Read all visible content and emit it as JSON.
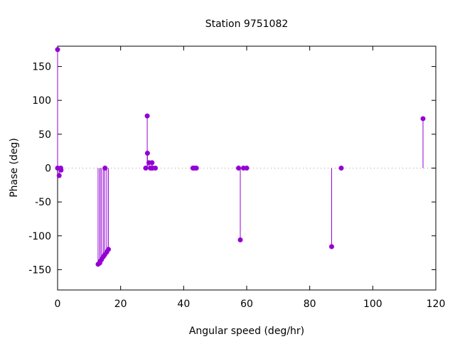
{
  "chart_data": {
    "type": "scatter",
    "style": "impulses with points",
    "title": "Station 9751082",
    "xlabel": "Angular speed (deg/hr)",
    "ylabel": "Phase (deg)",
    "xlim": [
      0,
      120
    ],
    "ylim": [
      -180,
      180
    ],
    "xticks": [
      0,
      20,
      40,
      60,
      80,
      100,
      120
    ],
    "yticks": [
      -150,
      -100,
      -50,
      0,
      50,
      100,
      150
    ],
    "grid": false,
    "zero_line": "dotted gray",
    "color": "#9400d3",
    "points": [
      {
        "x": 0,
        "y": 175
      },
      {
        "x": 0,
        "y": 0
      },
      {
        "x": 0.5,
        "y": -11
      },
      {
        "x": 1.0,
        "y": 0
      },
      {
        "x": 1.1,
        "y": -3
      },
      {
        "x": 12.85,
        "y": -142
      },
      {
        "x": 13.4,
        "y": -140
      },
      {
        "x": 13.47,
        "y": -138
      },
      {
        "x": 13.94,
        "y": -135
      },
      {
        "x": 14.5,
        "y": -131
      },
      {
        "x": 14.96,
        "y": -128
      },
      {
        "x": 15.04,
        "y": 0
      },
      {
        "x": 15.59,
        "y": -124
      },
      {
        "x": 16.14,
        "y": -120
      },
      {
        "x": 27.97,
        "y": 0
      },
      {
        "x": 28.44,
        "y": 77
      },
      {
        "x": 28.51,
        "y": 22
      },
      {
        "x": 28.98,
        "y": 8
      },
      {
        "x": 29.46,
        "y": 0
      },
      {
        "x": 29.96,
        "y": 8
      },
      {
        "x": 30.0,
        "y": 0
      },
      {
        "x": 30.08,
        "y": 0
      },
      {
        "x": 31.02,
        "y": 0
      },
      {
        "x": 42.93,
        "y": 0
      },
      {
        "x": 43.48,
        "y": 0
      },
      {
        "x": 44.03,
        "y": 0
      },
      {
        "x": 57.42,
        "y": 0
      },
      {
        "x": 57.97,
        "y": -106
      },
      {
        "x": 58.98,
        "y": 0
      },
      {
        "x": 60.0,
        "y": 0
      },
      {
        "x": 86.95,
        "y": -116
      },
      {
        "x": 90.0,
        "y": 0
      },
      {
        "x": 115.94,
        "y": 73
      }
    ]
  }
}
